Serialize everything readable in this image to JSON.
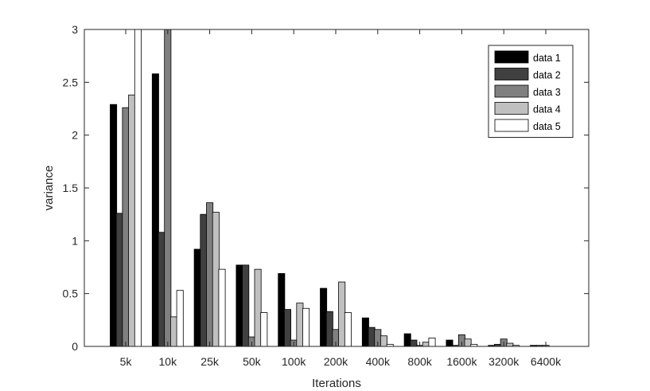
{
  "chart_data": {
    "type": "bar",
    "title": "",
    "xlabel": "Iterations",
    "ylabel": "variance",
    "ylim": [
      0,
      3
    ],
    "yticks": [
      0,
      0.5,
      1,
      1.5,
      2,
      2.5,
      3
    ],
    "ytick_labels": [
      "0",
      "0.5",
      "1",
      "1.5",
      "2",
      "2.5",
      "3"
    ],
    "categories": [
      "5k",
      "10k",
      "25k",
      "50k",
      "100k",
      "200k",
      "400k",
      "800k",
      "1600k",
      "3200k",
      "6400k"
    ],
    "grid": false,
    "legend_position": "top-right",
    "series": [
      {
        "name": "data 1",
        "color": "#000000",
        "values": [
          2.29,
          2.58,
          0.92,
          0.77,
          0.69,
          0.55,
          0.27,
          0.12,
          0.06,
          0.01,
          0.01
        ]
      },
      {
        "name": "data 2",
        "color": "#404040",
        "values": [
          1.26,
          1.08,
          1.25,
          0.77,
          0.35,
          0.33,
          0.18,
          0.06,
          0.01,
          0.02,
          0.01
        ]
      },
      {
        "name": "data 3",
        "color": "#808080",
        "values": [
          2.26,
          3.0,
          1.36,
          0.09,
          0.06,
          0.16,
          0.16,
          0.01,
          0.11,
          0.07,
          0.01
        ]
      },
      {
        "name": "data 4",
        "color": "#c0c0c0",
        "values": [
          2.38,
          0.28,
          1.27,
          0.73,
          0.41,
          0.61,
          0.1,
          0.04,
          0.07,
          0.03,
          0.0
        ]
      },
      {
        "name": "data 5",
        "color": "#ffffff",
        "values": [
          3.0,
          0.53,
          0.73,
          0.32,
          0.36,
          0.32,
          0.02,
          0.08,
          0.02,
          0.01,
          0.0
        ]
      }
    ]
  }
}
